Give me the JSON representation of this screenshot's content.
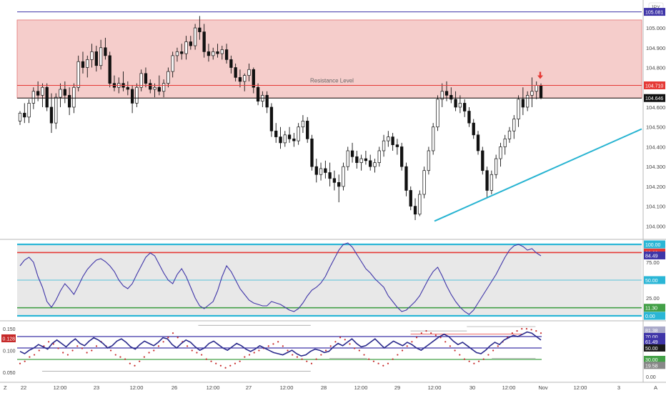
{
  "chart_data": {
    "type": "candlestick",
    "currency_label": "JPY",
    "x_ticks": [
      "22",
      "12:00",
      "23",
      "12:00",
      "26",
      "12:00",
      "27",
      "12:00",
      "28",
      "12:00",
      "29",
      "12:00",
      "30",
      "12:00",
      "Nov",
      "12:00",
      "3",
      "12:00",
      "A"
    ],
    "corner_labels": {
      "left": "Z",
      "right": "A"
    },
    "price_axis": {
      "ylim": [
        103.94,
        105.13
      ],
      "ticks": [
        "105.000",
        "104.900",
        "104.800",
        "104.600",
        "104.500",
        "104.400",
        "104.300",
        "104.200",
        "104.100",
        "104.000"
      ],
      "resistance_zone": [
        104.646,
        105.04
      ],
      "levels": [
        {
          "value": 105.081,
          "label": "105.081",
          "color": "#3f35a8"
        },
        {
          "value": 104.71,
          "label": "104.710",
          "color": "#e53935"
        },
        {
          "value": 104.646,
          "label": "104.646",
          "color": "#111111"
        }
      ],
      "annotation": "Resistance Level",
      "trendline": [
        [
          104.025,
          104.49
        ]
      ],
      "candles": [
        [
          104.53,
          104.58,
          104.51,
          104.57
        ],
        [
          104.57,
          104.62,
          104.52,
          104.55
        ],
        [
          104.55,
          104.64,
          104.52,
          104.62
        ],
        [
          104.62,
          104.7,
          104.59,
          104.68
        ],
        [
          104.68,
          104.73,
          104.63,
          104.66
        ],
        [
          104.66,
          104.72,
          104.6,
          104.7
        ],
        [
          104.7,
          104.72,
          104.58,
          104.6
        ],
        [
          104.6,
          104.67,
          104.47,
          104.52
        ],
        [
          104.52,
          104.67,
          104.49,
          104.65
        ],
        [
          104.65,
          104.72,
          104.6,
          104.69
        ],
        [
          104.69,
          104.73,
          104.62,
          104.66
        ],
        [
          104.66,
          104.7,
          104.56,
          104.6
        ],
        [
          104.6,
          104.72,
          104.57,
          104.7
        ],
        [
          104.7,
          104.86,
          104.68,
          104.83
        ],
        [
          104.83,
          104.88,
          104.77,
          104.8
        ],
        [
          104.8,
          104.86,
          104.75,
          104.84
        ],
        [
          104.84,
          104.92,
          104.8,
          104.88
        ],
        [
          104.88,
          104.91,
          104.78,
          104.81
        ],
        [
          104.81,
          104.94,
          104.79,
          104.9
        ],
        [
          104.9,
          104.95,
          104.84,
          104.86
        ],
        [
          104.86,
          104.88,
          104.7,
          104.72
        ],
        [
          104.72,
          104.76,
          104.68,
          104.7
        ],
        [
          104.7,
          104.75,
          104.67,
          104.72
        ],
        [
          104.72,
          104.78,
          104.68,
          104.7
        ],
        [
          104.7,
          104.73,
          104.66,
          104.69
        ],
        [
          104.69,
          104.71,
          104.57,
          104.62
        ],
        [
          104.62,
          104.72,
          104.6,
          104.7
        ],
        [
          104.7,
          104.79,
          104.68,
          104.77
        ],
        [
          104.77,
          104.8,
          104.7,
          104.72
        ],
        [
          104.72,
          104.74,
          104.67,
          104.69
        ],
        [
          104.69,
          104.72,
          104.65,
          104.7
        ],
        [
          104.7,
          104.76,
          104.66,
          104.68
        ],
        [
          104.68,
          104.74,
          104.65,
          104.72
        ],
        [
          104.72,
          104.8,
          104.7,
          104.78
        ],
        [
          104.78,
          104.88,
          104.75,
          104.86
        ],
        [
          104.86,
          104.9,
          104.83,
          104.88
        ],
        [
          104.88,
          104.92,
          104.84,
          104.87
        ],
        [
          104.87,
          104.96,
          104.84,
          104.93
        ],
        [
          104.93,
          104.96,
          104.89,
          104.91
        ],
        [
          104.91,
          105.02,
          104.89,
          105.0
        ],
        [
          105.0,
          105.06,
          104.94,
          104.98
        ],
        [
          104.98,
          105.02,
          104.85,
          104.88
        ],
        [
          104.88,
          104.92,
          104.83,
          104.86
        ],
        [
          104.86,
          104.9,
          104.84,
          104.88
        ],
        [
          104.88,
          104.92,
          104.85,
          104.87
        ],
        [
          104.87,
          104.91,
          104.84,
          104.89
        ],
        [
          104.89,
          104.92,
          104.82,
          104.84
        ],
        [
          104.84,
          104.86,
          104.77,
          104.8
        ],
        [
          104.8,
          104.82,
          104.73,
          104.75
        ],
        [
          104.75,
          104.79,
          104.7,
          104.73
        ],
        [
          104.73,
          104.77,
          104.68,
          104.76
        ],
        [
          104.76,
          104.82,
          104.73,
          104.79
        ],
        [
          104.79,
          104.8,
          104.67,
          104.7
        ],
        [
          104.7,
          104.72,
          104.61,
          104.63
        ],
        [
          104.63,
          104.68,
          104.6,
          104.66
        ],
        [
          104.66,
          104.68,
          104.57,
          104.6
        ],
        [
          104.6,
          104.62,
          104.45,
          104.48
        ],
        [
          104.48,
          104.52,
          104.42,
          104.45
        ],
        [
          104.45,
          104.5,
          104.39,
          104.42
        ],
        [
          104.42,
          104.48,
          104.4,
          104.46
        ],
        [
          104.46,
          104.5,
          104.42,
          104.44
        ],
        [
          104.44,
          104.47,
          104.4,
          104.43
        ],
        [
          104.43,
          104.52,
          104.41,
          104.5
        ],
        [
          104.5,
          104.56,
          104.47,
          104.53
        ],
        [
          104.53,
          104.55,
          104.42,
          104.44
        ],
        [
          104.44,
          104.46,
          104.28,
          104.3
        ],
        [
          104.3,
          104.34,
          104.22,
          104.26
        ],
        [
          104.26,
          104.32,
          104.23,
          104.29
        ],
        [
          104.29,
          104.33,
          104.24,
          104.27
        ],
        [
          104.27,
          104.32,
          104.2,
          104.24
        ],
        [
          104.24,
          104.28,
          104.18,
          104.22
        ],
        [
          104.22,
          104.26,
          104.12,
          104.2
        ],
        [
          104.2,
          104.32,
          104.18,
          104.3
        ],
        [
          104.3,
          104.4,
          104.28,
          104.38
        ],
        [
          104.38,
          104.42,
          104.32,
          104.35
        ],
        [
          104.35,
          104.38,
          104.29,
          104.32
        ],
        [
          104.32,
          104.36,
          104.28,
          104.34
        ],
        [
          104.34,
          104.38,
          104.31,
          104.33
        ],
        [
          104.33,
          104.36,
          104.28,
          104.3
        ],
        [
          104.3,
          104.34,
          104.27,
          104.32
        ],
        [
          104.32,
          104.4,
          104.3,
          104.38
        ],
        [
          104.38,
          104.46,
          104.35,
          104.43
        ],
        [
          104.43,
          104.48,
          104.4,
          104.45
        ],
        [
          104.45,
          104.47,
          104.38,
          104.41
        ],
        [
          104.41,
          104.44,
          104.36,
          104.4
        ],
        [
          104.4,
          104.42,
          104.28,
          104.3
        ],
        [
          104.3,
          104.32,
          104.15,
          104.18
        ],
        [
          104.18,
          104.2,
          104.08,
          104.1
        ],
        [
          104.1,
          104.14,
          104.03,
          104.06
        ],
        [
          104.06,
          104.18,
          104.05,
          104.16
        ],
        [
          104.16,
          104.3,
          104.14,
          104.28
        ],
        [
          104.28,
          104.4,
          104.26,
          104.38
        ],
        [
          104.38,
          104.52,
          104.36,
          104.5
        ],
        [
          104.5,
          104.66,
          104.48,
          104.64
        ],
        [
          104.64,
          104.72,
          104.6,
          104.68
        ],
        [
          104.68,
          104.73,
          104.63,
          104.66
        ],
        [
          104.66,
          104.7,
          104.62,
          104.64
        ],
        [
          104.64,
          104.68,
          104.58,
          104.6
        ],
        [
          104.6,
          104.66,
          104.57,
          104.62
        ],
        [
          104.62,
          104.64,
          104.55,
          104.58
        ],
        [
          104.58,
          104.6,
          104.5,
          104.52
        ],
        [
          104.52,
          104.54,
          104.44,
          104.46
        ],
        [
          104.46,
          104.48,
          104.36,
          104.38
        ],
        [
          104.38,
          104.4,
          104.26,
          104.28
        ],
        [
          104.28,
          104.3,
          104.14,
          104.18
        ],
        [
          104.18,
          104.28,
          104.16,
          104.26
        ],
        [
          104.26,
          104.36,
          104.24,
          104.34
        ],
        [
          104.34,
          104.42,
          104.3,
          104.4
        ],
        [
          104.4,
          104.46,
          104.36,
          104.44
        ],
        [
          104.44,
          104.5,
          104.42,
          104.48
        ],
        [
          104.48,
          104.56,
          104.44,
          104.54
        ],
        [
          104.54,
          104.66,
          104.5,
          104.64
        ],
        [
          104.64,
          104.7,
          104.56,
          104.6
        ],
        [
          104.6,
          104.68,
          104.58,
          104.66
        ],
        [
          104.66,
          104.75,
          104.6,
          104.68
        ],
        [
          104.68,
          104.73,
          104.64,
          104.71
        ],
        [
          104.71,
          104.72,
          104.64,
          104.646
        ]
      ]
    },
    "oscillator_1": {
      "ylim": [
        -5,
        105
      ],
      "ticks": [
        "75.00",
        "25.00"
      ],
      "levels": [
        {
          "value": 100,
          "label": "100.00",
          "color": "#2ab6d6"
        },
        {
          "value": 88.6,
          "label": "88.60",
          "color": "#e53935"
        },
        {
          "value": 50,
          "label": "50.00",
          "color": "#2ab6d6"
        },
        {
          "value": 11.3,
          "label": "11.30",
          "color": "#43a047"
        },
        {
          "value": 0,
          "label": "0.00",
          "color": "#2ab6d6"
        }
      ],
      "current": {
        "value": 84.49,
        "label": "84.49",
        "color": "#3f35a8"
      },
      "points": [
        70,
        78,
        82,
        75,
        55,
        40,
        20,
        12,
        22,
        35,
        45,
        38,
        30,
        42,
        55,
        65,
        72,
        78,
        80,
        76,
        70,
        62,
        50,
        42,
        38,
        45,
        58,
        70,
        82,
        88,
        84,
        72,
        60,
        50,
        45,
        58,
        66,
        55,
        40,
        25,
        14,
        10,
        15,
        20,
        35,
        55,
        70,
        62,
        50,
        38,
        30,
        22,
        18,
        16,
        14,
        14,
        20,
        18,
        16,
        12,
        8,
        6,
        10,
        18,
        28,
        36,
        40,
        46,
        55,
        68,
        80,
        92,
        100,
        102,
        96,
        86,
        76,
        66,
        60,
        52,
        46,
        40,
        28,
        20,
        12,
        6,
        8,
        14,
        20,
        28,
        40,
        52,
        62,
        68,
        56,
        42,
        30,
        20,
        12,
        6,
        2,
        8,
        18,
        28,
        38,
        48,
        58,
        70,
        82,
        92,
        98,
        100,
        97,
        92,
        94,
        88,
        84
      ],
      "point_count_hint": 117
    },
    "oscillator_2": {
      "ylim": [
        0.03,
        0.165
      ],
      "ticks": [
        "0.150",
        "0.100",
        "0.050"
      ],
      "current_label": "0.128",
      "right_axis": {
        "labels": [
          "81.38",
          "70.00",
          "61.49",
          "50.00",
          "30.00",
          "19.58",
          "0.00"
        ],
        "levels": [
          {
            "value": 70,
            "color": "#3f35a8"
          },
          {
            "value": 50,
            "color": "#3f35a8"
          },
          {
            "value": 30,
            "color": "#43a047"
          }
        ],
        "line": [
          44,
          40,
          46,
          50,
          56,
          52,
          48,
          58,
          64,
          58,
          52,
          60,
          66,
          58,
          54,
          62,
          68,
          64,
          58,
          50,
          54,
          62,
          66,
          60,
          52,
          48,
          56,
          62,
          58,
          54,
          60,
          68,
          66,
          56,
          50,
          58,
          64,
          60,
          52,
          46,
          50,
          58,
          62,
          56,
          50,
          46,
          52,
          58,
          54,
          48,
          44,
          48,
          54,
          50,
          46,
          42,
          40,
          38,
          42,
          46,
          40,
          36,
          38,
          44,
          48,
          46,
          42,
          44,
          52,
          58,
          54,
          60,
          66,
          58,
          52,
          54,
          60,
          66,
          58,
          50,
          56,
          62,
          58,
          54,
          60,
          56,
          50,
          46,
          52,
          58,
          64,
          70,
          74,
          70,
          62,
          56,
          60,
          54,
          48,
          42,
          40,
          46,
          54,
          60,
          56,
          64,
          68,
          72,
          70,
          74,
          78,
          76,
          70,
          64
        ]
      },
      "dots": [
        0.07,
        0.075,
        0.085,
        0.09,
        0.1,
        0.11,
        0.12,
        0.115,
        0.105,
        0.095,
        0.09,
        0.1,
        0.11,
        0.105,
        0.095,
        0.1,
        0.11,
        0.12,
        0.11,
        0.1,
        0.09,
        0.085,
        0.08,
        0.07,
        0.065,
        0.075,
        0.085,
        0.095,
        0.1,
        0.11,
        0.12,
        0.13,
        0.14,
        0.13,
        0.12,
        0.11,
        0.1,
        0.095,
        0.09,
        0.08,
        0.075,
        0.07,
        0.065,
        0.06,
        0.065,
        0.07,
        0.075,
        0.085,
        0.09,
        0.095,
        0.1,
        0.105,
        0.11,
        0.115,
        0.12,
        0.11,
        0.1,
        0.09,
        0.085,
        0.08,
        0.075,
        0.07,
        0.08,
        0.09,
        0.1,
        0.11,
        0.12,
        0.13,
        0.125,
        0.115,
        0.105,
        0.1,
        0.09,
        0.08,
        0.075,
        0.07,
        0.065,
        0.07,
        0.08,
        0.09,
        0.1,
        0.11,
        0.12,
        0.13,
        0.14,
        0.145,
        0.14,
        0.135,
        0.13,
        0.12,
        0.11,
        0.1,
        0.09,
        0.08,
        0.075,
        0.07,
        0.075,
        0.08,
        0.09,
        0.1,
        0.11,
        0.12,
        0.13,
        0.14,
        0.145,
        0.15,
        0.15,
        0.148,
        0.145,
        0.14
      ],
      "gray_segments": [
        {
          "x": [
            0.04,
            0.47
          ],
          "y": 0.052
        },
        {
          "x": [
            0.29,
            0.47
          ],
          "y": 0.158
        },
        {
          "x": [
            0.5,
            0.56
          ],
          "y": 0.082
        },
        {
          "x": [
            0.63,
            0.72
          ],
          "y": 0.145
        },
        {
          "x": [
            0.72,
            0.83
          ],
          "y": 0.155
        },
        {
          "x": [
            0.76,
            0.83
          ],
          "y": 0.082
        }
      ],
      "red_segments": [
        {
          "x": [
            0.63,
            0.81
          ],
          "y": 0.138
        }
      ]
    }
  }
}
